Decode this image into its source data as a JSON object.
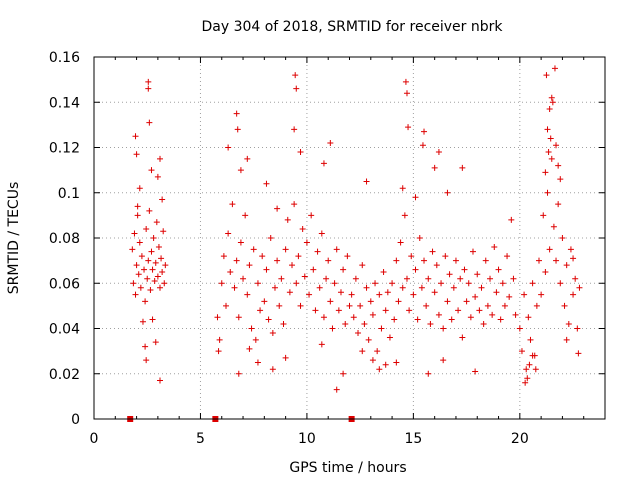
{
  "chart_data": {
    "type": "scatter",
    "title": "Day 304 of 2018, SRMTID for receiver nbrk",
    "xlabel": "GPS time / hours",
    "ylabel": "SRMTID / TECUs",
    "xlim": [
      0,
      24
    ],
    "ylim": [
      0,
      0.16
    ],
    "x_ticks": [
      0,
      5,
      10,
      15,
      20
    ],
    "x_tick_labels": [
      "0",
      "5",
      "10",
      "15",
      "20"
    ],
    "y_ticks": [
      0,
      0.02,
      0.04,
      0.06,
      0.08,
      0.1,
      0.12,
      0.14,
      0.16
    ],
    "y_tick_labels": [
      "0",
      "0.02",
      "0.04",
      "0.06",
      "0.08",
      "0.1",
      "0.12",
      "0.14",
      "0.16"
    ],
    "grid": true,
    "marker": "+",
    "color": "#dd0000",
    "zero_markers": {
      "x": [
        1.7,
        5.7,
        12.1
      ],
      "y": [
        0,
        0,
        0
      ]
    },
    "series": [
      {
        "name": "SRMTID",
        "points": [
          [
            1.8,
            0.075
          ],
          [
            1.85,
            0.06
          ],
          [
            1.9,
            0.082
          ],
          [
            1.95,
            0.055
          ],
          [
            2.0,
            0.068
          ],
          [
            2.05,
            0.09
          ],
          [
            2.1,
            0.064
          ],
          [
            2.15,
            0.078
          ],
          [
            2.2,
            0.058
          ],
          [
            2.25,
            0.072
          ],
          [
            2.3,
            0.043
          ],
          [
            2.35,
            0.066
          ],
          [
            2.4,
            0.052
          ],
          [
            2.45,
            0.084
          ],
          [
            2.5,
            0.062
          ],
          [
            2.55,
            0.07
          ],
          [
            2.6,
            0.092
          ],
          [
            2.65,
            0.057
          ],
          [
            2.7,
            0.074
          ],
          [
            2.75,
            0.066
          ],
          [
            2.8,
            0.08
          ],
          [
            2.85,
            0.061
          ],
          [
            2.9,
            0.069
          ],
          [
            2.95,
            0.087
          ],
          [
            3.0,
            0.063
          ],
          [
            3.05,
            0.076
          ],
          [
            3.1,
            0.058
          ],
          [
            3.15,
            0.071
          ],
          [
            3.2,
            0.065
          ],
          [
            3.25,
            0.083
          ],
          [
            3.3,
            0.06
          ],
          [
            3.35,
            0.068
          ],
          [
            1.95,
            0.125
          ],
          [
            2.0,
            0.117
          ],
          [
            2.55,
            0.149
          ],
          [
            2.55,
            0.146
          ],
          [
            2.6,
            0.131
          ],
          [
            2.7,
            0.11
          ],
          [
            3.0,
            0.107
          ],
          [
            3.1,
            0.115
          ],
          [
            3.2,
            0.097
          ],
          [
            2.05,
            0.094
          ],
          [
            2.4,
            0.032
          ],
          [
            2.45,
            0.026
          ],
          [
            3.1,
            0.017
          ],
          [
            2.9,
            0.034
          ],
          [
            2.15,
            0.102
          ],
          [
            2.75,
            0.044
          ],
          [
            5.8,
            0.045
          ],
          [
            5.9,
            0.035
          ],
          [
            6.0,
            0.06
          ],
          [
            6.1,
            0.072
          ],
          [
            6.2,
            0.05
          ],
          [
            6.3,
            0.082
          ],
          [
            6.4,
            0.065
          ],
          [
            6.5,
            0.095
          ],
          [
            6.6,
            0.058
          ],
          [
            6.7,
            0.07
          ],
          [
            6.8,
            0.045
          ],
          [
            6.9,
            0.078
          ],
          [
            7.0,
            0.062
          ],
          [
            7.1,
            0.09
          ],
          [
            7.2,
            0.055
          ],
          [
            7.3,
            0.068
          ],
          [
            7.4,
            0.04
          ],
          [
            7.5,
            0.075
          ],
          [
            7.6,
            0.035
          ],
          [
            7.7,
            0.06
          ],
          [
            7.8,
            0.048
          ],
          [
            7.9,
            0.072
          ],
          [
            8.0,
            0.052
          ],
          [
            8.1,
            0.066
          ],
          [
            8.2,
            0.044
          ],
          [
            8.3,
            0.08
          ],
          [
            8.4,
            0.038
          ],
          [
            8.5,
            0.058
          ],
          [
            8.6,
            0.07
          ],
          [
            8.7,
            0.05
          ],
          [
            8.8,
            0.062
          ],
          [
            8.9,
            0.042
          ],
          [
            9.0,
            0.075
          ],
          [
            9.1,
            0.088
          ],
          [
            9.2,
            0.056
          ],
          [
            9.3,
            0.068
          ],
          [
            9.4,
            0.095
          ],
          [
            9.5,
            0.06
          ],
          [
            9.6,
            0.072
          ],
          [
            9.7,
            0.05
          ],
          [
            9.8,
            0.084
          ],
          [
            9.9,
            0.063
          ],
          [
            10.0,
            0.078
          ],
          [
            10.1,
            0.055
          ],
          [
            10.2,
            0.09
          ],
          [
            10.3,
            0.066
          ],
          [
            10.4,
            0.048
          ],
          [
            10.5,
            0.074
          ],
          [
            10.6,
            0.058
          ],
          [
            10.7,
            0.082
          ],
          [
            10.8,
            0.045
          ],
          [
            10.9,
            0.062
          ],
          [
            11.0,
            0.07
          ],
          [
            11.1,
            0.052
          ],
          [
            11.2,
            0.04
          ],
          [
            11.3,
            0.06
          ],
          [
            11.4,
            0.075
          ],
          [
            11.5,
            0.048
          ],
          [
            11.6,
            0.056
          ],
          [
            11.7,
            0.066
          ],
          [
            11.8,
            0.042
          ],
          [
            11.9,
            0.072
          ],
          [
            12.0,
            0.05
          ],
          [
            6.7,
            0.135
          ],
          [
            6.75,
            0.128
          ],
          [
            6.3,
            0.12
          ],
          [
            7.2,
            0.115
          ],
          [
            9.45,
            0.152
          ],
          [
            9.5,
            0.146
          ],
          [
            9.4,
            0.128
          ],
          [
            9.7,
            0.118
          ],
          [
            10.8,
            0.113
          ],
          [
            11.1,
            0.122
          ],
          [
            6.9,
            0.11
          ],
          [
            8.1,
            0.104
          ],
          [
            8.6,
            0.093
          ],
          [
            7.7,
            0.025
          ],
          [
            7.3,
            0.031
          ],
          [
            8.4,
            0.022
          ],
          [
            9.0,
            0.027
          ],
          [
            10.7,
            0.033
          ],
          [
            11.4,
            0.013
          ],
          [
            11.7,
            0.02
          ],
          [
            6.8,
            0.02
          ],
          [
            5.85,
            0.03
          ],
          [
            12.1,
            0.055
          ],
          [
            12.2,
            0.045
          ],
          [
            12.3,
            0.062
          ],
          [
            12.4,
            0.038
          ],
          [
            12.5,
            0.05
          ],
          [
            12.6,
            0.068
          ],
          [
            12.7,
            0.042
          ],
          [
            12.8,
            0.058
          ],
          [
            12.9,
            0.035
          ],
          [
            13.0,
            0.052
          ],
          [
            13.1,
            0.046
          ],
          [
            13.2,
            0.06
          ],
          [
            13.3,
            0.03
          ],
          [
            13.4,
            0.055
          ],
          [
            13.5,
            0.04
          ],
          [
            13.6,
            0.065
          ],
          [
            13.7,
            0.048
          ],
          [
            13.8,
            0.056
          ],
          [
            13.9,
            0.036
          ],
          [
            14.0,
            0.06
          ],
          [
            14.1,
            0.044
          ],
          [
            14.2,
            0.07
          ],
          [
            14.3,
            0.052
          ],
          [
            14.4,
            0.078
          ],
          [
            14.5,
            0.058
          ],
          [
            14.6,
            0.09
          ],
          [
            14.7,
            0.062
          ],
          [
            14.8,
            0.048
          ],
          [
            14.9,
            0.072
          ],
          [
            15.0,
            0.055
          ],
          [
            15.1,
            0.066
          ],
          [
            15.2,
            0.044
          ],
          [
            15.3,
            0.08
          ],
          [
            15.4,
            0.058
          ],
          [
            15.5,
            0.07
          ],
          [
            15.6,
            0.05
          ],
          [
            15.7,
            0.062
          ],
          [
            15.8,
            0.042
          ],
          [
            15.9,
            0.074
          ],
          [
            16.0,
            0.056
          ],
          [
            16.1,
            0.068
          ],
          [
            16.2,
            0.046
          ],
          [
            16.3,
            0.06
          ],
          [
            16.4,
            0.04
          ],
          [
            16.5,
            0.072
          ],
          [
            16.6,
            0.052
          ],
          [
            16.7,
            0.064
          ],
          [
            16.8,
            0.044
          ],
          [
            16.9,
            0.058
          ],
          [
            17.0,
            0.07
          ],
          [
            17.1,
            0.048
          ],
          [
            17.2,
            0.062
          ],
          [
            17.3,
            0.036
          ],
          [
            17.4,
            0.066
          ],
          [
            17.5,
            0.052
          ],
          [
            17.6,
            0.06
          ],
          [
            17.7,
            0.045
          ],
          [
            17.8,
            0.074
          ],
          [
            17.9,
            0.054
          ],
          [
            18.0,
            0.064
          ],
          [
            18.1,
            0.048
          ],
          [
            18.2,
            0.058
          ],
          [
            18.3,
            0.042
          ],
          [
            18.4,
            0.07
          ],
          [
            18.5,
            0.05
          ],
          [
            18.6,
            0.062
          ],
          [
            18.7,
            0.046
          ],
          [
            18.8,
            0.076
          ],
          [
            18.9,
            0.056
          ],
          [
            19.0,
            0.066
          ],
          [
            19.1,
            0.044
          ],
          [
            19.2,
            0.06
          ],
          [
            19.3,
            0.05
          ],
          [
            19.4,
            0.072
          ],
          [
            19.5,
            0.054
          ],
          [
            19.6,
            0.088
          ],
          [
            19.7,
            0.062
          ],
          [
            19.8,
            0.046
          ],
          [
            14.65,
            0.149
          ],
          [
            14.7,
            0.144
          ],
          [
            14.75,
            0.129
          ],
          [
            15.5,
            0.127
          ],
          [
            15.45,
            0.121
          ],
          [
            16.2,
            0.118
          ],
          [
            16.0,
            0.111
          ],
          [
            17.3,
            0.111
          ],
          [
            14.5,
            0.102
          ],
          [
            16.6,
            0.1
          ],
          [
            15.1,
            0.098
          ],
          [
            12.8,
            0.105
          ],
          [
            13.1,
            0.026
          ],
          [
            13.4,
            0.022
          ],
          [
            13.7,
            0.024
          ],
          [
            15.7,
            0.02
          ],
          [
            14.2,
            0.025
          ],
          [
            16.4,
            0.026
          ],
          [
            17.9,
            0.021
          ],
          [
            12.6,
            0.03
          ],
          [
            20.0,
            0.04
          ],
          [
            20.1,
            0.03
          ],
          [
            20.2,
            0.055
          ],
          [
            20.3,
            0.022
          ],
          [
            20.4,
            0.045
          ],
          [
            20.5,
            0.035
          ],
          [
            20.6,
            0.06
          ],
          [
            20.7,
            0.028
          ],
          [
            20.8,
            0.05
          ],
          [
            20.9,
            0.07
          ],
          [
            21.0,
            0.055
          ],
          [
            21.1,
            0.09
          ],
          [
            21.2,
            0.065
          ],
          [
            21.3,
            0.1
          ],
          [
            21.4,
            0.075
          ],
          [
            21.5,
            0.115
          ],
          [
            21.6,
            0.085
          ],
          [
            21.7,
            0.07
          ],
          [
            21.8,
            0.095
          ],
          [
            21.9,
            0.06
          ],
          [
            22.0,
            0.08
          ],
          [
            22.1,
            0.05
          ],
          [
            22.2,
            0.068
          ],
          [
            22.3,
            0.042
          ],
          [
            22.4,
            0.075
          ],
          [
            22.5,
            0.055
          ],
          [
            22.6,
            0.062
          ],
          [
            22.7,
            0.04
          ],
          [
            22.8,
            0.058
          ],
          [
            21.25,
            0.152
          ],
          [
            21.65,
            0.155
          ],
          [
            21.5,
            0.142
          ],
          [
            21.4,
            0.137
          ],
          [
            21.55,
            0.14
          ],
          [
            21.3,
            0.128
          ],
          [
            21.45,
            0.124
          ],
          [
            21.7,
            0.121
          ],
          [
            21.35,
            0.118
          ],
          [
            21.8,
            0.112
          ],
          [
            21.2,
            0.109
          ],
          [
            21.9,
            0.106
          ],
          [
            20.35,
            0.018
          ],
          [
            20.25,
            0.016
          ],
          [
            20.75,
            0.022
          ],
          [
            20.45,
            0.024
          ],
          [
            22.75,
            0.029
          ],
          [
            22.2,
            0.035
          ],
          [
            20.6,
            0.028
          ],
          [
            22.5,
            0.071
          ]
        ]
      }
    ]
  }
}
